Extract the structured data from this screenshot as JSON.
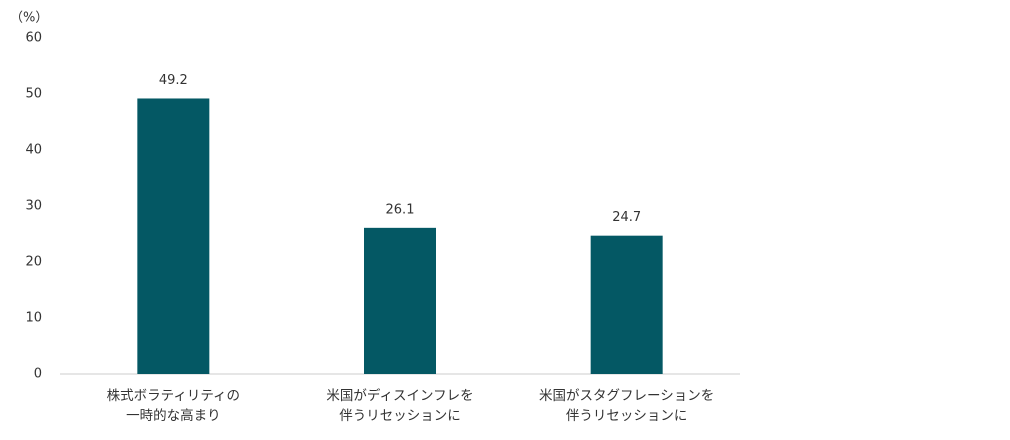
{
  "chart_data": {
    "type": "bar",
    "y_unit": "（%）",
    "categories": [
      [
        "株式ボラティリティの",
        "一時的な高まり"
      ],
      [
        "米国がディスインフレを",
        "伴うリセッションに"
      ],
      [
        "米国がスタグフレーションを",
        "伴うリセッションに"
      ]
    ],
    "values": [
      49.2,
      26.1,
      24.7
    ],
    "color": "#045864",
    "ylim": [
      0,
      60
    ],
    "yticks": [
      0,
      10,
      20,
      30,
      40,
      50,
      60
    ],
    "grid": false
  }
}
